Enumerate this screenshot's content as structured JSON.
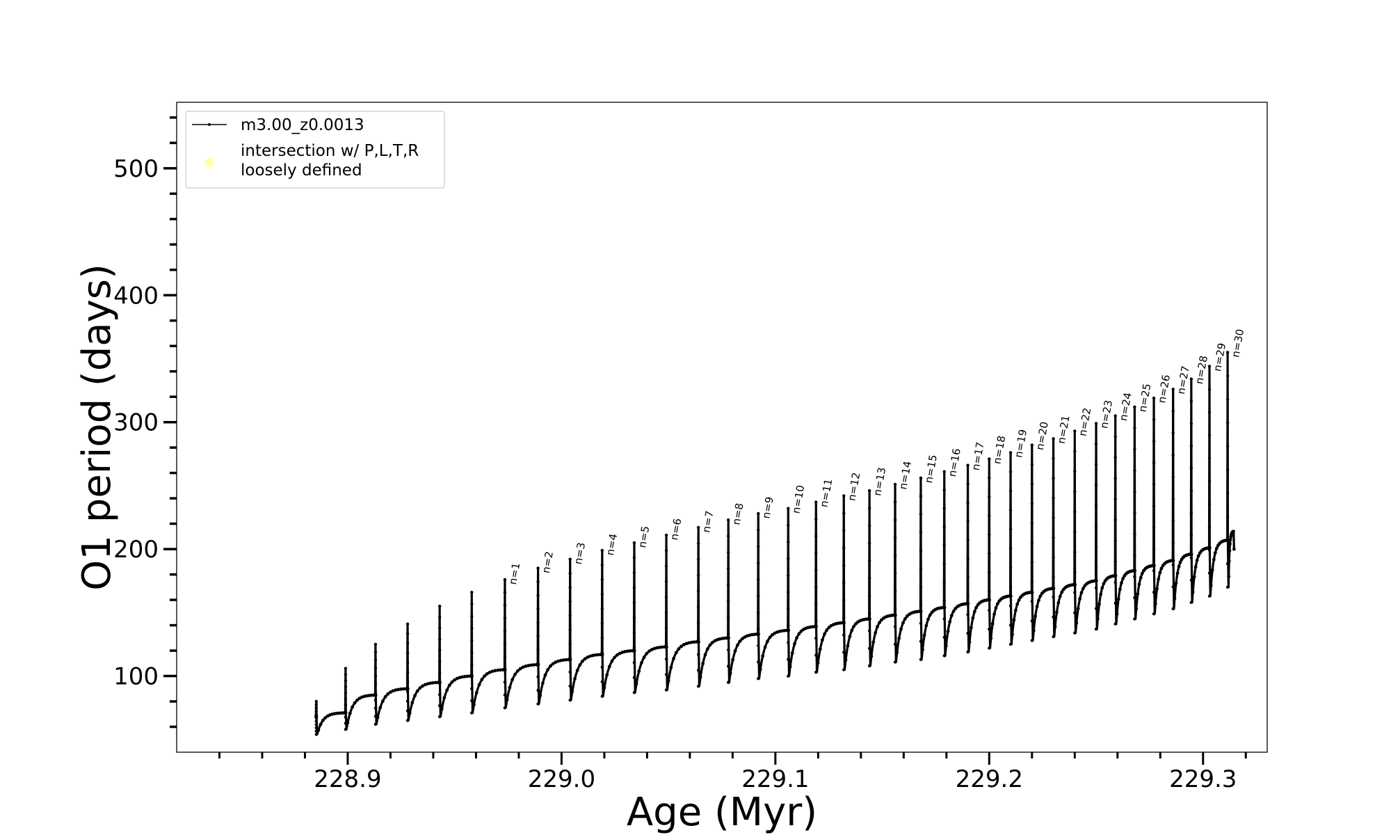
{
  "chart_data": {
    "type": "line",
    "title": "",
    "xlabel": "Age (Myr)",
    "ylabel": "O1 period (days)",
    "xlim": [
      228.82,
      229.33
    ],
    "ylim": [
      40,
      552
    ],
    "x_ticks": [
      228.9,
      229.0,
      229.1,
      229.2,
      229.3
    ],
    "x_tick_labels": [
      "228.9",
      "229.0",
      "229.1",
      "229.2",
      "229.3"
    ],
    "y_ticks": [
      100,
      200,
      300,
      400,
      500
    ],
    "y_tick_labels": [
      "100",
      "200",
      "300",
      "400",
      "500"
    ],
    "grid": false,
    "legend": {
      "placement": "top-left",
      "entries": [
        {
          "label": "m3.00_z0.0013",
          "color": "#000000",
          "marker": "line-dot"
        },
        {
          "label": "intersection w/ P,L,T,R",
          "label_line2": "loosely defined",
          "color": "#ffffb0",
          "marker": "circle"
        }
      ]
    },
    "series": [
      {
        "name": "m3.00_z0.0013",
        "color": "#000000",
        "pulses": [
          {
            "age": 228.8853,
            "peak": 80,
            "base": 54,
            "plateau": 71
          },
          {
            "age": 228.899,
            "peak": 106,
            "base": 58,
            "plateau": 85
          },
          {
            "age": 228.913,
            "peak": 125,
            "base": 62,
            "plateau": 90
          },
          {
            "age": 228.928,
            "peak": 141,
            "base": 65,
            "plateau": 95
          },
          {
            "age": 228.943,
            "peak": 155,
            "base": 68,
            "plateau": 100
          },
          {
            "age": 228.958,
            "peak": 166,
            "base": 71,
            "plateau": 105
          },
          {
            "age": 228.9735,
            "peak": 176,
            "base": 75,
            "plateau": 109,
            "label": "n=1"
          },
          {
            "age": 228.989,
            "peak": 185,
            "base": 78,
            "plateau": 113,
            "label": "n=2"
          },
          {
            "age": 229.004,
            "peak": 192,
            "base": 81,
            "plateau": 117,
            "label": "n=3"
          },
          {
            "age": 229.019,
            "peak": 199,
            "base": 84,
            "plateau": 120,
            "label": "n=4"
          },
          {
            "age": 229.034,
            "peak": 205,
            "base": 87,
            "plateau": 123,
            "label": "n=5"
          },
          {
            "age": 229.049,
            "peak": 211,
            "base": 89,
            "plateau": 127,
            "label": "n=6"
          },
          {
            "age": 229.064,
            "peak": 217,
            "base": 92,
            "plateau": 130,
            "label": "n=7"
          },
          {
            "age": 229.078,
            "peak": 223,
            "base": 95,
            "plateau": 133,
            "label": "n=8"
          },
          {
            "age": 229.092,
            "peak": 228,
            "base": 98,
            "plateau": 136,
            "label": "n=9"
          },
          {
            "age": 229.106,
            "peak": 232,
            "base": 100,
            "plateau": 139,
            "label": "n=10"
          },
          {
            "age": 229.119,
            "peak": 237,
            "base": 103,
            "plateau": 142,
            "label": "n=11"
          },
          {
            "age": 229.132,
            "peak": 242,
            "base": 105,
            "plateau": 145,
            "label": "n=12"
          },
          {
            "age": 229.144,
            "peak": 246,
            "base": 108,
            "plateau": 148,
            "label": "n=13"
          },
          {
            "age": 229.156,
            "peak": 251,
            "base": 111,
            "plateau": 151,
            "label": "n=14"
          },
          {
            "age": 229.168,
            "peak": 256,
            "base": 113,
            "plateau": 154,
            "label": "n=15"
          },
          {
            "age": 229.179,
            "peak": 261,
            "base": 116,
            "plateau": 157,
            "label": "n=16"
          },
          {
            "age": 229.19,
            "peak": 266,
            "base": 119,
            "plateau": 160,
            "label": "n=17"
          },
          {
            "age": 229.2,
            "peak": 271,
            "base": 122,
            "plateau": 163,
            "label": "n=18"
          },
          {
            "age": 229.21,
            "peak": 276,
            "base": 125,
            "plateau": 166,
            "label": "n=19"
          },
          {
            "age": 229.22,
            "peak": 282,
            "base": 128,
            "plateau": 169,
            "label": "n=20"
          },
          {
            "age": 229.23,
            "peak": 287,
            "base": 131,
            "plateau": 172,
            "label": "n=21"
          },
          {
            "age": 229.24,
            "peak": 293,
            "base": 134,
            "plateau": 175,
            "label": "n=22"
          },
          {
            "age": 229.25,
            "peak": 299,
            "base": 137,
            "plateau": 179,
            "label": "n=23"
          },
          {
            "age": 229.259,
            "peak": 305,
            "base": 141,
            "plateau": 183,
            "label": "n=24"
          },
          {
            "age": 229.268,
            "peak": 312,
            "base": 145,
            "plateau": 187,
            "label": "n=25"
          },
          {
            "age": 229.277,
            "peak": 319,
            "base": 149,
            "plateau": 191,
            "label": "n=26"
          },
          {
            "age": 229.286,
            "peak": 326,
            "base": 153,
            "plateau": 196,
            "label": "n=27"
          },
          {
            "age": 229.2945,
            "peak": 334,
            "base": 158,
            "plateau": 201,
            "label": "n=28"
          },
          {
            "age": 229.303,
            "peak": 344,
            "base": 163,
            "plateau": 207,
            "label": "n=29"
          },
          {
            "age": 229.3115,
            "peak": 355,
            "base": 170,
            "plateau": 214,
            "label": "n=30"
          }
        ],
        "end": {
          "age": 229.3145,
          "value": 200
        }
      }
    ]
  }
}
